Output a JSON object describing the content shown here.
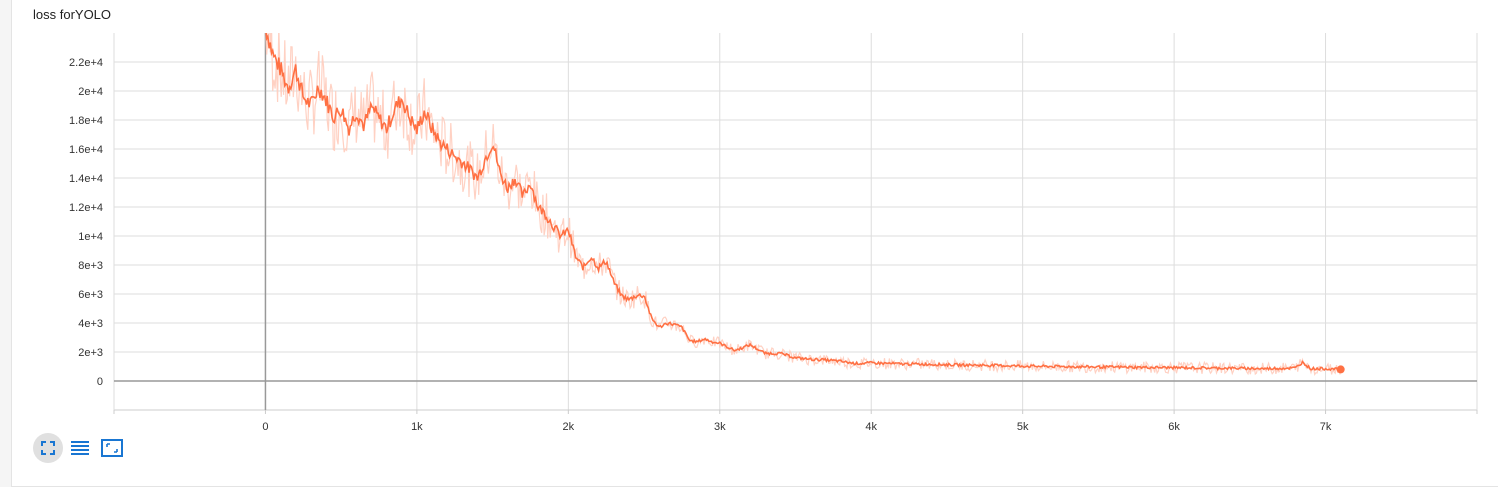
{
  "title": "loss forYOLO",
  "toolbar": {
    "expand_icon": "fullscreen-icon",
    "log_scale_icon": "list-lines-icon",
    "fit_domain_icon": "fit-domain-icon"
  },
  "colors": {
    "smoothed": "#ff7043",
    "raw": "#ffccbc",
    "grid": "#dddddd",
    "zero_axis": "#999999",
    "toolbar_icon": "#1976d2"
  },
  "chart_data": {
    "type": "line",
    "title": "loss forYOLO",
    "xlabel": "",
    "ylabel": "",
    "xlim": [
      -1000,
      8000
    ],
    "ylim": [
      -2000,
      24000
    ],
    "grid": true,
    "x_ticks": [
      0,
      1000,
      2000,
      3000,
      4000,
      5000,
      6000,
      7000
    ],
    "x_tick_labels": [
      "0",
      "1k",
      "2k",
      "3k",
      "4k",
      "5k",
      "6k",
      "7k"
    ],
    "y_ticks": [
      0,
      2000,
      4000,
      6000,
      8000,
      10000,
      12000,
      14000,
      16000,
      18000,
      20000,
      22000
    ],
    "y_tick_labels": [
      "0",
      "2e+3",
      "4e+3",
      "6e+3",
      "8e+3",
      "1e+4",
      "1.2e+4",
      "1.4e+4",
      "1.6e+4",
      "1.8e+4",
      "2e+4",
      "2.2e+4"
    ],
    "series": [
      {
        "style": "smoothed",
        "x": [
          0,
          50,
          100,
          150,
          200,
          250,
          300,
          350,
          400,
          450,
          500,
          550,
          600,
          650,
          700,
          750,
          800,
          850,
          900,
          950,
          1000,
          1050,
          1100,
          1150,
          1200,
          1250,
          1300,
          1350,
          1400,
          1450,
          1500,
          1550,
          1600,
          1650,
          1700,
          1750,
          1800,
          1850,
          1900,
          1950,
          2000,
          2050,
          2100,
          2150,
          2200,
          2250,
          2300,
          2350,
          2400,
          2450,
          2500,
          2550,
          2600,
          2650,
          2700,
          2750,
          2800,
          2850,
          2900,
          2950,
          3000,
          3100,
          3200,
          3300,
          3400,
          3500,
          3600,
          3700,
          3800,
          3900,
          4000,
          4200,
          4400,
          4600,
          4800,
          5000,
          5200,
          5400,
          5600,
          5800,
          6000,
          6200,
          6400,
          6600,
          6800,
          6850,
          6900,
          7000,
          7100
        ],
        "y": [
          24500,
          22500,
          21500,
          20200,
          21500,
          19600,
          19000,
          20300,
          19400,
          18200,
          18800,
          17400,
          18600,
          17600,
          18900,
          18100,
          17400,
          18700,
          19500,
          18200,
          17300,
          18600,
          17400,
          16500,
          16000,
          15500,
          15100,
          14600,
          14000,
          15300,
          16500,
          14300,
          13300,
          14000,
          12700,
          13700,
          12000,
          11500,
          10700,
          10000,
          10400,
          8500,
          7800,
          8600,
          7800,
          8300,
          6800,
          5900,
          5600,
          5900,
          5900,
          4300,
          3700,
          4000,
          3900,
          3700,
          2800,
          2700,
          2900,
          2700,
          2600,
          2100,
          2500,
          1900,
          1900,
          1600,
          1500,
          1450,
          1350,
          1200,
          1250,
          1180,
          1150,
          1100,
          1080,
          1030,
          1000,
          980,
          960,
          940,
          920,
          900,
          880,
          850,
          900,
          1300,
          850,
          850,
          800
        ]
      }
    ]
  }
}
